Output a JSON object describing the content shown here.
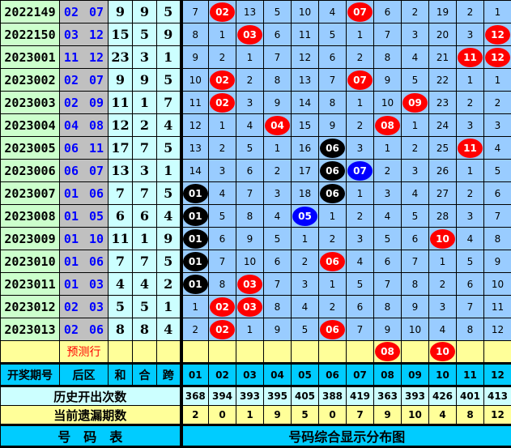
{
  "colors": {
    "red": "#ff0000",
    "black": "#000000",
    "blue": "#0000ff"
  },
  "rows": [
    {
      "period": "2022149",
      "back": "02 07",
      "sum": "9",
      "he": "9",
      "span": "5",
      "cells": [
        "7",
        {
          "n": "02",
          "c": "red"
        },
        "13",
        "5",
        "10",
        "4",
        {
          "n": "07",
          "c": "red"
        },
        "6",
        "2",
        "19",
        "2",
        "1"
      ]
    },
    {
      "period": "2022150",
      "back": "03 12",
      "sum": "15",
      "he": "5",
      "span": "9",
      "cells": [
        "8",
        "1",
        {
          "n": "03",
          "c": "red"
        },
        "6",
        "11",
        "5",
        "1",
        "7",
        "3",
        "20",
        "3",
        {
          "n": "12",
          "c": "red"
        }
      ]
    },
    {
      "period": "2023001",
      "back": "11 12",
      "sum": "23",
      "he": "3",
      "span": "1",
      "cells": [
        "9",
        "2",
        "1",
        "7",
        "12",
        "6",
        "2",
        "8",
        "4",
        "21",
        {
          "n": "11",
          "c": "red"
        },
        {
          "n": "12",
          "c": "red"
        }
      ]
    },
    {
      "period": "2023002",
      "back": "02 07",
      "sum": "9",
      "he": "9",
      "span": "5",
      "cells": [
        "10",
        {
          "n": "02",
          "c": "red"
        },
        "2",
        "8",
        "13",
        "7",
        {
          "n": "07",
          "c": "red"
        },
        "9",
        "5",
        "22",
        "1",
        "1"
      ]
    },
    {
      "period": "2023003",
      "back": "02 09",
      "sum": "11",
      "he": "1",
      "span": "7",
      "cells": [
        "11",
        {
          "n": "02",
          "c": "red"
        },
        "3",
        "9",
        "14",
        "8",
        "1",
        "10",
        {
          "n": "09",
          "c": "red"
        },
        "23",
        "2",
        "2"
      ]
    },
    {
      "period": "2023004",
      "back": "04 08",
      "sum": "12",
      "he": "2",
      "span": "4",
      "cells": [
        "12",
        "1",
        "4",
        {
          "n": "04",
          "c": "red"
        },
        "15",
        "9",
        "2",
        {
          "n": "08",
          "c": "red"
        },
        "1",
        "24",
        "3",
        "3"
      ]
    },
    {
      "period": "2023005",
      "back": "06 11",
      "sum": "17",
      "he": "7",
      "span": "5",
      "cells": [
        "13",
        "2",
        "5",
        "1",
        "16",
        {
          "n": "06",
          "c": "black"
        },
        "3",
        "1",
        "2",
        "25",
        {
          "n": "11",
          "c": "red"
        },
        "4"
      ]
    },
    {
      "period": "2023006",
      "back": "06 07",
      "sum": "13",
      "he": "3",
      "span": "1",
      "cells": [
        "14",
        "3",
        "6",
        "2",
        "17",
        {
          "n": "06",
          "c": "black"
        },
        {
          "n": "07",
          "c": "blue"
        },
        "2",
        "3",
        "26",
        "1",
        "5"
      ]
    },
    {
      "period": "2023007",
      "back": "01 06",
      "sum": "7",
      "he": "7",
      "span": "5",
      "cells": [
        {
          "n": "01",
          "c": "black"
        },
        "4",
        "7",
        "3",
        "18",
        {
          "n": "06",
          "c": "black"
        },
        "1",
        "3",
        "4",
        "27",
        "2",
        "6"
      ]
    },
    {
      "period": "2023008",
      "back": "01 05",
      "sum": "6",
      "he": "6",
      "span": "4",
      "cells": [
        {
          "n": "01",
          "c": "black"
        },
        "5",
        "8",
        "4",
        {
          "n": "05",
          "c": "blue"
        },
        "1",
        "2",
        "4",
        "5",
        "28",
        "3",
        "7"
      ]
    },
    {
      "period": "2023009",
      "back": "01 10",
      "sum": "11",
      "he": "1",
      "span": "9",
      "cells": [
        {
          "n": "01",
          "c": "black"
        },
        "6",
        "9",
        "5",
        "1",
        "2",
        "3",
        "5",
        "6",
        {
          "n": "10",
          "c": "red"
        },
        "4",
        "8"
      ]
    },
    {
      "period": "2023010",
      "back": "01 06",
      "sum": "7",
      "he": "7",
      "span": "5",
      "cells": [
        {
          "n": "01",
          "c": "black"
        },
        "7",
        "10",
        "6",
        "2",
        {
          "n": "06",
          "c": "red"
        },
        "4",
        "6",
        "7",
        "1",
        "5",
        "9"
      ]
    },
    {
      "period": "2023011",
      "back": "01 03",
      "sum": "4",
      "he": "4",
      "span": "2",
      "cells": [
        {
          "n": "01",
          "c": "black"
        },
        "8",
        {
          "n": "03",
          "c": "red"
        },
        "7",
        "3",
        "1",
        "5",
        "7",
        "8",
        "2",
        "6",
        "10"
      ]
    },
    {
      "period": "2023012",
      "back": "02 03",
      "sum": "5",
      "he": "5",
      "span": "1",
      "cells": [
        "1",
        {
          "n": "02",
          "c": "red"
        },
        {
          "n": "03",
          "c": "red"
        },
        "8",
        "4",
        "2",
        "6",
        "8",
        "9",
        "3",
        "7",
        "11"
      ]
    },
    {
      "period": "2023013",
      "back": "02 06",
      "sum": "8",
      "he": "8",
      "span": "4",
      "cells": [
        "2",
        {
          "n": "02",
          "c": "red"
        },
        "1",
        "9",
        "5",
        {
          "n": "06",
          "c": "red"
        },
        "7",
        "9",
        "10",
        "4",
        "8",
        "12"
      ]
    }
  ],
  "prediction": {
    "label": "预测行",
    "cells": [
      "",
      "",
      "",
      "",
      "",
      "",
      "",
      {
        "n": "08",
        "c": "red"
      },
      "",
      {
        "n": "10",
        "c": "red"
      },
      "",
      ""
    ]
  },
  "header": {
    "period": "开奖期号",
    "back": "后区",
    "sum": "和",
    "he": "合",
    "span": "跨",
    "numbers": [
      "01",
      "02",
      "03",
      "04",
      "05",
      "06",
      "07",
      "08",
      "09",
      "10",
      "11",
      "12"
    ]
  },
  "history": {
    "label": "历史开出次数",
    "values": [
      "368",
      "394",
      "393",
      "395",
      "405",
      "388",
      "419",
      "363",
      "393",
      "426",
      "401",
      "413"
    ]
  },
  "current_miss": {
    "label": "当前遗漏期数",
    "values": [
      "2",
      "0",
      "1",
      "9",
      "5",
      "0",
      "7",
      "9",
      "10",
      "4",
      "8",
      "12"
    ]
  },
  "footer": {
    "left": "号　码　表",
    "right": "号码综合显示分布图"
  }
}
